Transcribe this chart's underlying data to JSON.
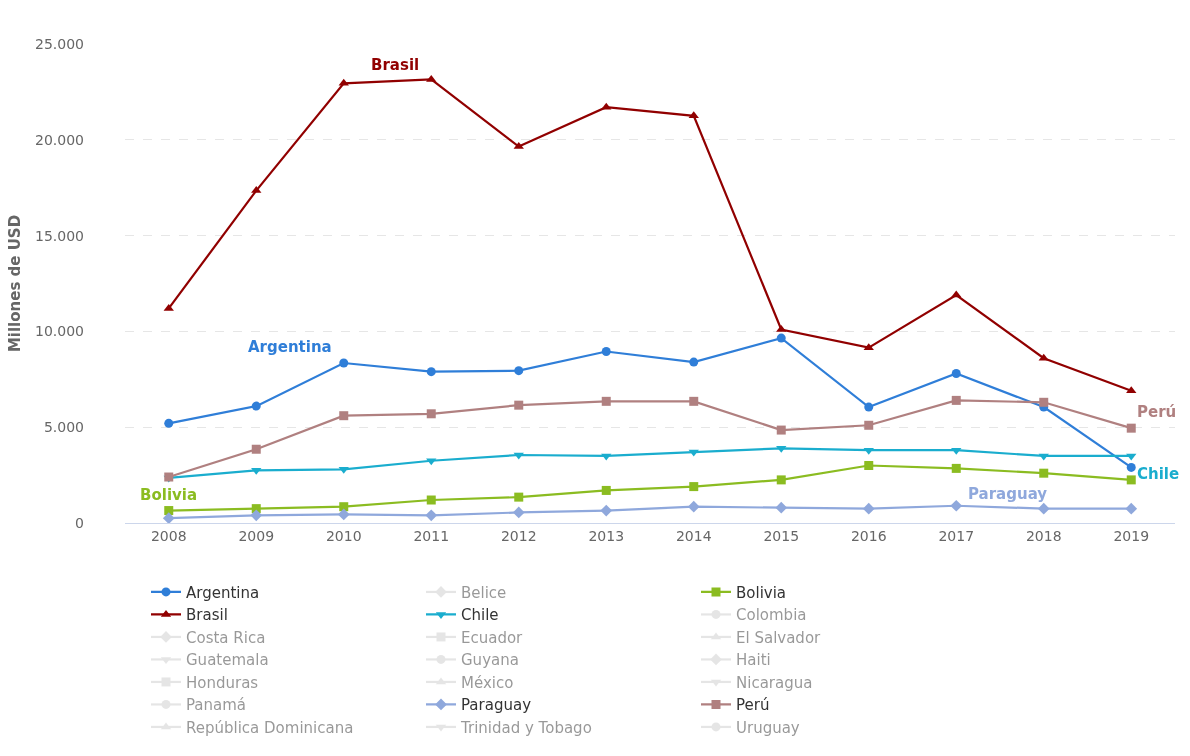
{
  "chart_data": {
    "type": "line",
    "ylabel": "Millones de USD",
    "categories": [
      "2008",
      "2009",
      "2010",
      "2011",
      "2012",
      "2013",
      "2014",
      "2015",
      "2016",
      "2017",
      "2018",
      "2019"
    ],
    "ylim": [
      0,
      25000
    ],
    "yticks": [
      {
        "value": 0,
        "label": "0"
      },
      {
        "value": 5000,
        "label": "5.000"
      },
      {
        "value": 10000,
        "label": "10.000"
      },
      {
        "value": 15000,
        "label": "15.000"
      },
      {
        "value": 20000,
        "label": "20.000"
      },
      {
        "value": 25000,
        "label": "25.000"
      }
    ],
    "grid": "y",
    "legend": "bottom",
    "series": [
      {
        "name": "Argentina",
        "color": "#2f7ed8",
        "marker": "circle",
        "values": [
          5200,
          6100,
          8350,
          7900,
          7950,
          8950,
          8400,
          9650,
          6050,
          7800,
          6050,
          2900
        ]
      },
      {
        "name": "Belice",
        "color": "#cccccc",
        "marker": "diamond",
        "values": [
          null,
          null,
          null,
          null,
          null,
          null,
          null,
          null,
          null,
          null,
          null,
          null
        ]
      },
      {
        "name": "Bolivia",
        "color": "#8bbc21",
        "marker": "square",
        "values": [
          650,
          750,
          850,
          1200,
          1350,
          1700,
          1900,
          2250,
          3000,
          2850,
          2600,
          2250
        ]
      },
      {
        "name": "Brasil",
        "color": "#910000",
        "marker": "triangle",
        "values": [
          11200,
          17350,
          22950,
          23150,
          19650,
          21700,
          21250,
          10100,
          9150,
          11900,
          8600,
          6900
        ]
      },
      {
        "name": "Chile",
        "color": "#1aadce",
        "marker": "triangle-down",
        "values": [
          2350,
          2750,
          2800,
          3250,
          3550,
          3500,
          3700,
          3900,
          3800,
          3800,
          3500,
          3500
        ]
      },
      {
        "name": "Colombia",
        "color": "#cccccc",
        "marker": "circle",
        "values": [
          null,
          null,
          null,
          null,
          null,
          null,
          null,
          null,
          null,
          null,
          null,
          null
        ]
      },
      {
        "name": "Costa Rica",
        "color": "#cccccc",
        "marker": "diamond",
        "values": [
          null,
          null,
          null,
          null,
          null,
          null,
          null,
          null,
          null,
          null,
          null,
          null
        ]
      },
      {
        "name": "Ecuador",
        "color": "#cccccc",
        "marker": "square",
        "values": [
          null,
          null,
          null,
          null,
          null,
          null,
          null,
          null,
          null,
          null,
          null,
          null
        ]
      },
      {
        "name": "El Salvador",
        "color": "#cccccc",
        "marker": "triangle",
        "values": [
          null,
          null,
          null,
          null,
          null,
          null,
          null,
          null,
          null,
          null,
          null,
          null
        ]
      },
      {
        "name": "Guatemala",
        "color": "#cccccc",
        "marker": "triangle-down",
        "values": [
          null,
          null,
          null,
          null,
          null,
          null,
          null,
          null,
          null,
          null,
          null,
          null
        ]
      },
      {
        "name": "Guyana",
        "color": "#cccccc",
        "marker": "circle",
        "values": [
          null,
          null,
          null,
          null,
          null,
          null,
          null,
          null,
          null,
          null,
          null,
          null
        ]
      },
      {
        "name": "Haiti",
        "color": "#cccccc",
        "marker": "diamond",
        "values": [
          null,
          null,
          null,
          null,
          null,
          null,
          null,
          null,
          null,
          null,
          null,
          null
        ]
      },
      {
        "name": "Honduras",
        "color": "#cccccc",
        "marker": "square",
        "values": [
          null,
          null,
          null,
          null,
          null,
          null,
          null,
          null,
          null,
          null,
          null,
          null
        ]
      },
      {
        "name": "México",
        "color": "#cccccc",
        "marker": "triangle",
        "values": [
          null,
          null,
          null,
          null,
          null,
          null,
          null,
          null,
          null,
          null,
          null,
          null
        ]
      },
      {
        "name": "Nicaragua",
        "color": "#cccccc",
        "marker": "triangle-down",
        "values": [
          null,
          null,
          null,
          null,
          null,
          null,
          null,
          null,
          null,
          null,
          null,
          null
        ]
      },
      {
        "name": "Panamá",
        "color": "#cccccc",
        "marker": "circle",
        "values": [
          null,
          null,
          null,
          null,
          null,
          null,
          null,
          null,
          null,
          null,
          null,
          null
        ]
      },
      {
        "name": "Paraguay",
        "color": "#8fa8dc",
        "marker": "diamond",
        "values": [
          250,
          400,
          450,
          400,
          550,
          650,
          850,
          800,
          750,
          900,
          750,
          750
        ]
      },
      {
        "name": "Perú",
        "color": "#b08080",
        "marker": "square",
        "values": [
          2400,
          3850,
          5600,
          5700,
          6150,
          6350,
          6350,
          4850,
          5100,
          6400,
          6300,
          4950
        ]
      },
      {
        "name": "República Dominicana",
        "color": "#cccccc",
        "marker": "triangle",
        "values": [
          null,
          null,
          null,
          null,
          null,
          null,
          null,
          null,
          null,
          null,
          null,
          null
        ]
      },
      {
        "name": "Trinidad y Tobago",
        "color": "#cccccc",
        "marker": "triangle-down",
        "values": [
          null,
          null,
          null,
          null,
          null,
          null,
          null,
          null,
          null,
          null,
          null,
          null
        ]
      },
      {
        "name": "Uruguay",
        "color": "#cccccc",
        "marker": "circle",
        "values": [
          null,
          null,
          null,
          null,
          null,
          null,
          null,
          null,
          null,
          null,
          null,
          null
        ]
      }
    ]
  }
}
